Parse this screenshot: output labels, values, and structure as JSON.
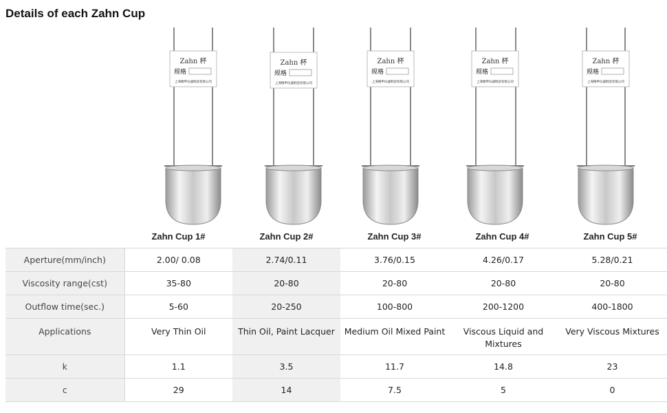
{
  "page": {
    "title": "Details of each Zahn Cup"
  },
  "cups": [
    {
      "name": "Zahn Cup 1#",
      "tag_title": "Zahn 杯",
      "tag_spec_label": "规格",
      "tag_company": "上海精申仪器制造有限公司"
    },
    {
      "name": "Zahn Cup 2#",
      "tag_title": "Zahn 杯",
      "tag_spec_label": "规格",
      "tag_company": "上海精申仪器制造有限公司"
    },
    {
      "name": "Zahn Cup 3#",
      "tag_title": "Zahn 杯",
      "tag_spec_label": "规格",
      "tag_company": "上海精申仪器制造有限公司"
    },
    {
      "name": "Zahn Cup 4#",
      "tag_title": "Zahn 杯",
      "tag_spec_label": "规格",
      "tag_company": "上海精申仪器制造有限公司"
    },
    {
      "name": "Zahn Cup 5#",
      "tag_title": "Zahn 杯",
      "tag_spec_label": "规格",
      "tag_company": "上海精申仪器制造有限公司"
    }
  ],
  "table": {
    "rows": [
      {
        "label": "Aperture(mm/inch)",
        "values": [
          "2.00/ 0.08",
          "2.74/0.11",
          "3.76/0.15",
          "4.26/0.17",
          "5.28/0.21"
        ]
      },
      {
        "label": "Viscosity range(cst)",
        "values": [
          "35-80",
          "20-80",
          "20-80",
          "20-80",
          "20-80"
        ]
      },
      {
        "label": "Outflow time(sec.)",
        "values": [
          "5-60",
          "20-250",
          "100-800",
          "200-1200",
          "400-1800"
        ]
      },
      {
        "label": "Applications",
        "values": [
          "Very Thin Oil",
          "Thin Oil, Paint Lacquer",
          "Medium Oil Mixed Paint",
          "Viscous Liquid and Mixtures",
          "Very Viscous Mixtures"
        ]
      },
      {
        "label": "k",
        "values": [
          "1.1",
          "3.5",
          "11.7",
          "14.8",
          "23"
        ]
      },
      {
        "label": "c",
        "values": [
          "29",
          "14",
          "7.5",
          "5",
          "0"
        ]
      }
    ]
  },
  "colors": {
    "label_bg": "#f0f0f0",
    "border": "#d8d8d8",
    "metal_light": "#f4f4f4",
    "metal_dark": "#8a8a8a"
  }
}
